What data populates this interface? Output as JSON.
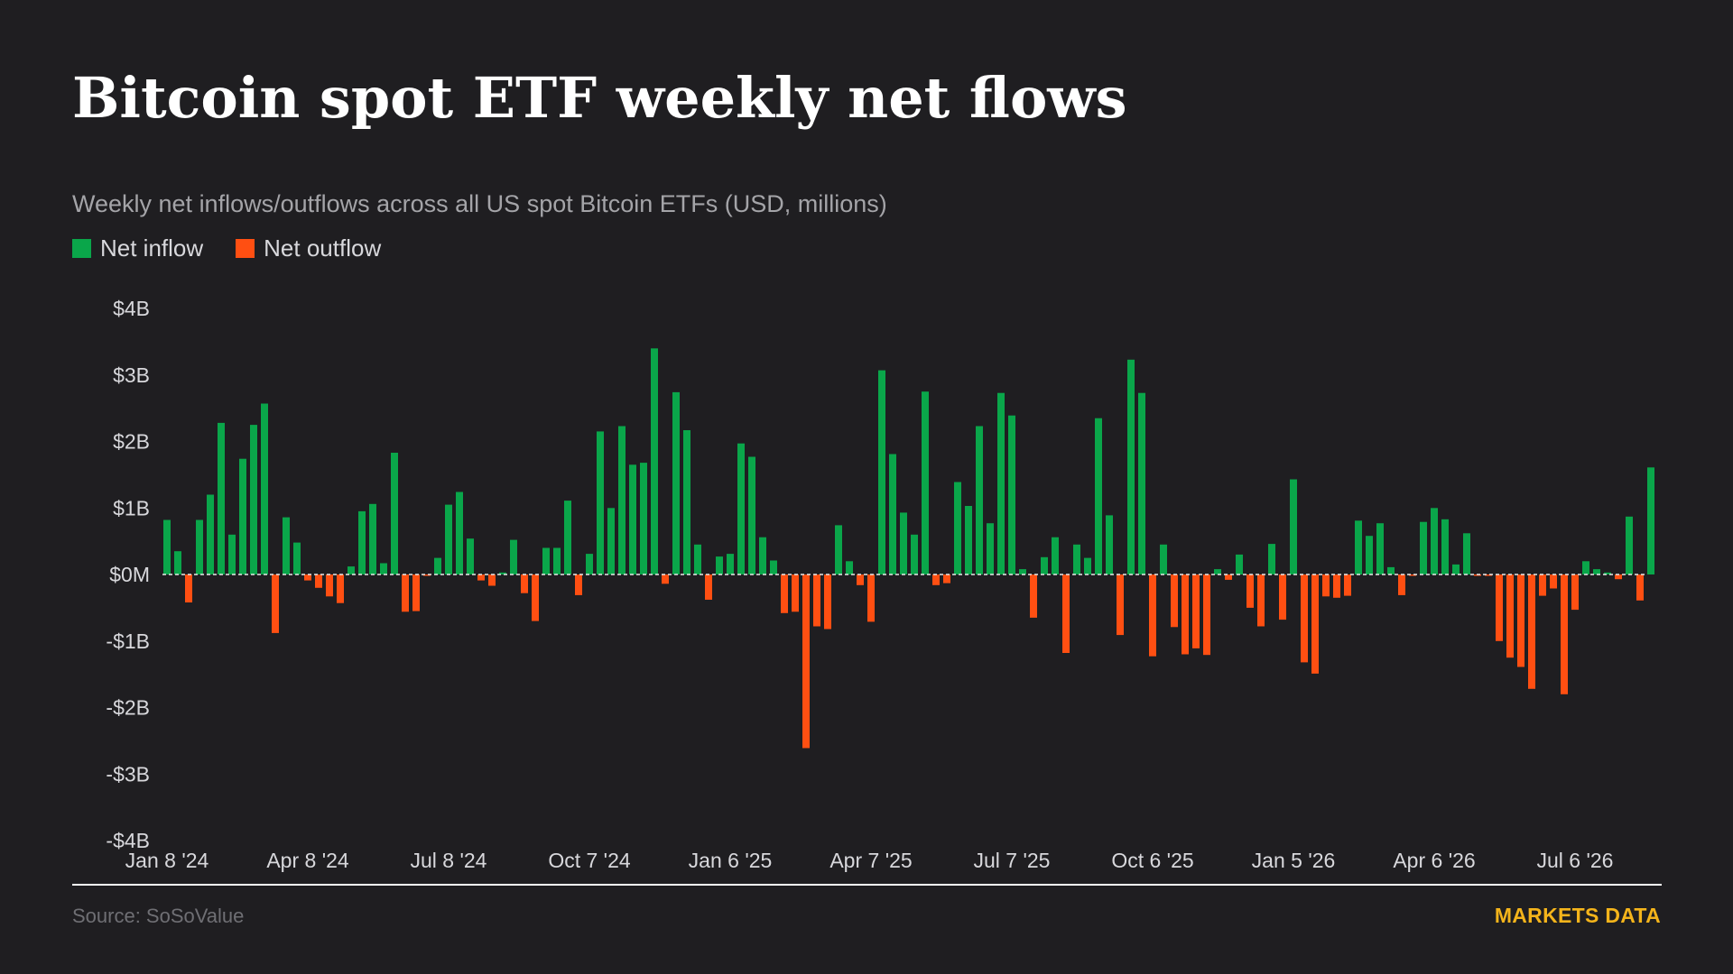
{
  "colors": {
    "inflow": "#0aa64a",
    "outflow": "#ff4f12",
    "background": "#1f1e21",
    "brand": "#f4b41b"
  },
  "legend": {
    "inflow_label": "Net inflow",
    "outflow_label": "Net outflow"
  },
  "footer": {
    "source": "Source: SoSoValue",
    "brand": "MARKETS DATA"
  },
  "chart_data": {
    "type": "bar",
    "title": "Bitcoin spot ETF weekly net flows",
    "subtitle": "Weekly net inflows/outflows across all US spot Bitcoin ETFs (USD, millions)",
    "xlabel": "",
    "ylabel": "",
    "ylim": [
      -4000,
      4000
    ],
    "y_ticks": [
      {
        "value": 4000,
        "label": "$4B"
      },
      {
        "value": 3000,
        "label": "$3B"
      },
      {
        "value": 2000,
        "label": "$2B"
      },
      {
        "value": 1000,
        "label": "$1B"
      },
      {
        "value": 0,
        "label": "$0M"
      },
      {
        "value": -1000,
        "label": "-$1B"
      },
      {
        "value": -2000,
        "label": "-$2B"
      },
      {
        "value": -3000,
        "label": "-$3B"
      },
      {
        "value": -4000,
        "label": "-$4B"
      }
    ],
    "x_ticks": [
      {
        "index": 0,
        "label": "Jan 8 '24"
      },
      {
        "index": 13,
        "label": "Apr 8 '24"
      },
      {
        "index": 26,
        "label": "Jul 8 '24"
      },
      {
        "index": 39,
        "label": "Oct 7 '24"
      },
      {
        "index": 52,
        "label": "Jan 6 '25"
      },
      {
        "index": 65,
        "label": "Apr 7 '25"
      },
      {
        "index": 78,
        "label": "Jul 7 '25"
      },
      {
        "index": 91,
        "label": "Oct 6 '25"
      },
      {
        "index": 104,
        "label": "Jan 5 '26"
      },
      {
        "index": 117,
        "label": "Apr 6 '26"
      },
      {
        "index": 130,
        "label": "Jul 6 '26"
      }
    ],
    "grid": false,
    "zero_line": "dashed",
    "legend_position": "top-left",
    "series": [
      {
        "name": "Net flow",
        "values": [
          820,
          350,
          -420,
          820,
          1200,
          2280,
          600,
          1740,
          2250,
          2570,
          -880,
          860,
          480,
          -90,
          -200,
          -330,
          -430,
          120,
          950,
          1060,
          170,
          1830,
          -560,
          -550,
          -20,
          250,
          1050,
          1240,
          540,
          -90,
          -170,
          30,
          520,
          -280,
          -700,
          400,
          400,
          1110,
          -310,
          310,
          2150,
          1000,
          2230,
          1650,
          1680,
          3400,
          -140,
          2740,
          2170,
          450,
          -380,
          270,
          310,
          1970,
          1770,
          560,
          210,
          -580,
          -560,
          -2610,
          -780,
          -820,
          740,
          200,
          -160,
          -710,
          3070,
          1810,
          930,
          600,
          2750,
          -160,
          -130,
          1390,
          1030,
          2230,
          770,
          2730,
          2390,
          80,
          -650,
          260,
          560,
          -1180,
          450,
          250,
          2350,
          890,
          -910,
          3230,
          2730,
          -1230,
          450,
          -790,
          -1200,
          -1110,
          -1210,
          80,
          -80,
          300,
          -500,
          -780,
          460,
          -680,
          1430,
          -1320,
          -1490,
          -330,
          -350,
          -320,
          810,
          580,
          770,
          110,
          -310,
          -20,
          790,
          1000,
          830,
          150,
          620,
          -20,
          -20,
          -1000,
          -1250,
          -1390,
          -1720,
          -320,
          -210,
          -1800,
          -530,
          200,
          80,
          30,
          -70,
          870,
          -390,
          1610
        ]
      }
    ]
  }
}
